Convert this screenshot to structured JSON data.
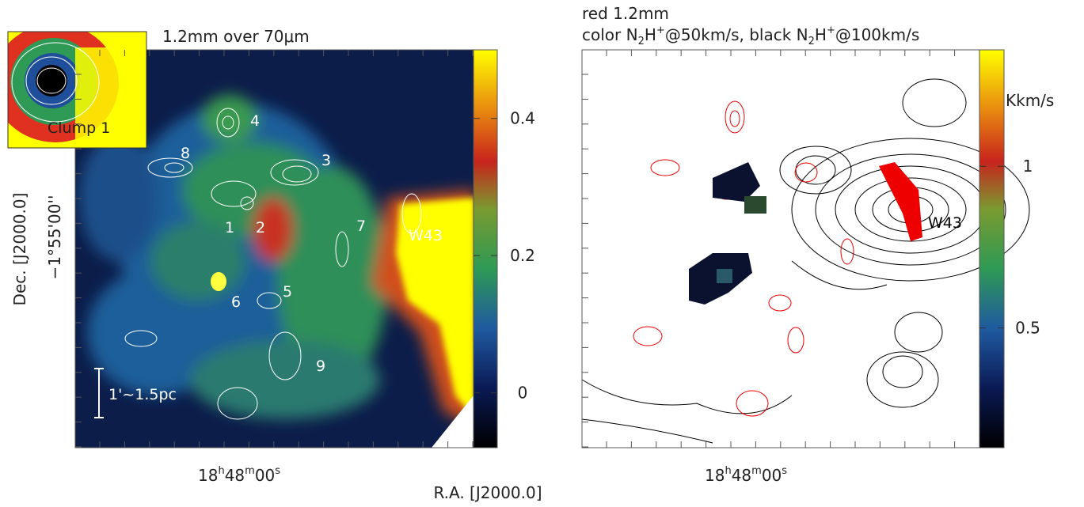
{
  "left_panel": {
    "title": "1.2mm over 70μm",
    "labels": [
      "4",
      "8",
      "3",
      "1",
      "2",
      "7",
      "W43",
      "6",
      "5",
      "9"
    ],
    "scale_bar": "1'~1.5pc",
    "inset_label": "Clump 1",
    "x_tick": [
      "18",
      "h",
      "48",
      "m",
      "00",
      "s"
    ],
    "colorbar": {
      "lim": [
        -0.08,
        0.5
      ],
      "ticks": [
        0,
        0.2,
        0.4
      ]
    }
  },
  "right_panel": {
    "title_line1": "red 1.2mm",
    "title_line2": [
      "color N",
      "2",
      "H",
      "+",
      "@50km/s, black N",
      "2",
      "H",
      "+",
      "@100km/s"
    ],
    "labels": [
      "W43"
    ],
    "colorbar_unit": "Kkm/s",
    "x_tick": [
      "18",
      "h",
      "48",
      "m",
      "00",
      "s"
    ],
    "colorbar": {
      "lim": [
        0.13,
        1.36
      ],
      "ticks": [
        0.5,
        1
      ]
    }
  },
  "y_axis": {
    "label": "Dec. [J2000.0]",
    "tick": "−1°55'00''"
  },
  "x_axis": {
    "label": "R.A. [J2000.0]"
  }
}
